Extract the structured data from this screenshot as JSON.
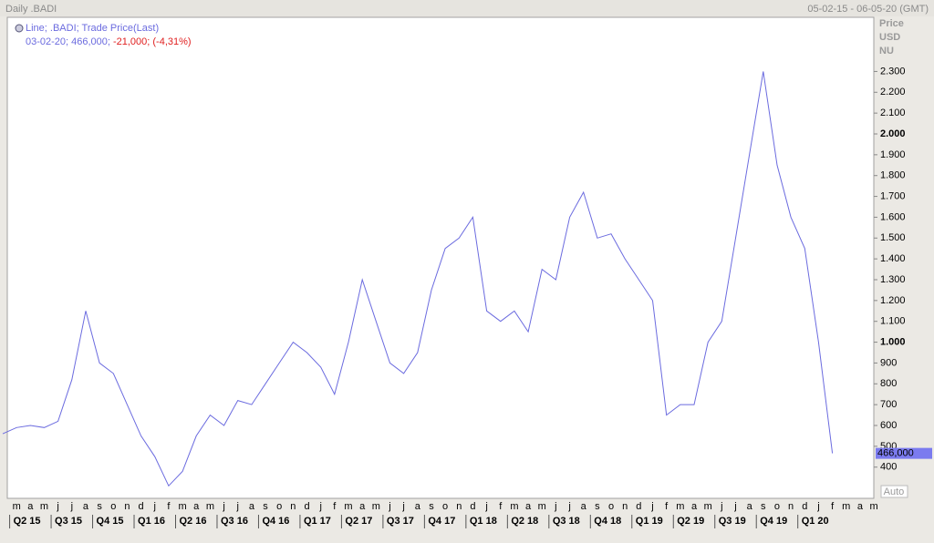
{
  "chart_data": {
    "type": "line",
    "title": "Daily .BADI",
    "date_range": "05-02-15 - 06-05-20 (GMT)",
    "axis_labels": [
      "Price",
      "USD",
      "NU"
    ],
    "legend_title": "Line; .BADI; Trade Price(Last)",
    "legend_info": "03-02-20; 466,000;",
    "legend_change": "-21,000; (-4,31%)",
    "last_label": "466,000",
    "auto_label": "Auto",
    "categories": [
      null,
      "m",
      "a",
      "m",
      "j",
      "j",
      "a",
      "s",
      "o",
      "n",
      "d",
      "j",
      "f",
      "m",
      "a",
      "m",
      "j",
      "j",
      "a",
      "s",
      "o",
      "n",
      "d",
      "j",
      "f",
      "m",
      "a",
      "m",
      "j",
      "j",
      "a",
      "s",
      "o",
      "n",
      "d",
      "j",
      "f",
      "m",
      "a",
      "m",
      "j",
      "j",
      "a",
      "s",
      "o",
      "n",
      "d",
      "j",
      "f",
      "m",
      "a",
      "m",
      "j",
      "j",
      "a",
      "s",
      "o",
      "n",
      "d",
      "j",
      "f",
      "m",
      "a",
      "m"
    ],
    "quarters": [
      "Q2 15",
      "Q3 15",
      "Q4 15",
      "Q1 16",
      "Q2 16",
      "Q3 16",
      "Q4 16",
      "Q1 17",
      "Q2 17",
      "Q3 17",
      "Q4 17",
      "Q1 18",
      "Q2 18",
      "Q3 18",
      "Q4 18",
      "Q1 19",
      "Q2 19",
      "Q3 19",
      "Q4 19",
      "Q1 20"
    ],
    "series": [
      {
        "name": ".BADI",
        "color": "#6b6bdf",
        "values": [
          560,
          590,
          600,
          590,
          620,
          820,
          1150,
          900,
          850,
          700,
          550,
          450,
          310,
          380,
          550,
          650,
          600,
          720,
          700,
          800,
          900,
          1000,
          950,
          880,
          750,
          1000,
          1300,
          1100,
          900,
          850,
          950,
          1250,
          1450,
          1500,
          1600,
          1150,
          1100,
          1150,
          1050,
          1350,
          1300,
          1600,
          1720,
          1500,
          1520,
          1400,
          1300,
          1200,
          650,
          700,
          700,
          1000,
          1100,
          1500,
          1900,
          2300,
          1850,
          1600,
          1450,
          1000,
          466,
          null,
          null,
          null
        ]
      }
    ],
    "ylim": [
      250,
      2560
    ],
    "yticks": [
      400,
      500,
      600,
      700,
      800,
      900,
      {
        "value": 1000,
        "label": "1.000"
      },
      {
        "value": 1100,
        "label": "1.100"
      },
      {
        "value": 1200,
        "label": "1.200"
      },
      {
        "value": 1300,
        "label": "1.300"
      },
      {
        "value": 1400,
        "label": "1.400"
      },
      {
        "value": 1500,
        "label": "1.500"
      },
      {
        "value": 1600,
        "label": "1.600"
      },
      {
        "value": 1700,
        "label": "1.700"
      },
      {
        "value": 1800,
        "label": "1.800"
      },
      {
        "value": 1900,
        "label": "1.900"
      },
      {
        "value": 2000,
        "label": "2.000"
      },
      {
        "value": 2100,
        "label": "2.100"
      },
      {
        "value": 2200,
        "label": "2.200"
      },
      {
        "value": 2300,
        "label": "2.300"
      }
    ],
    "bold_ticks": [
      1000,
      2000
    ]
  }
}
